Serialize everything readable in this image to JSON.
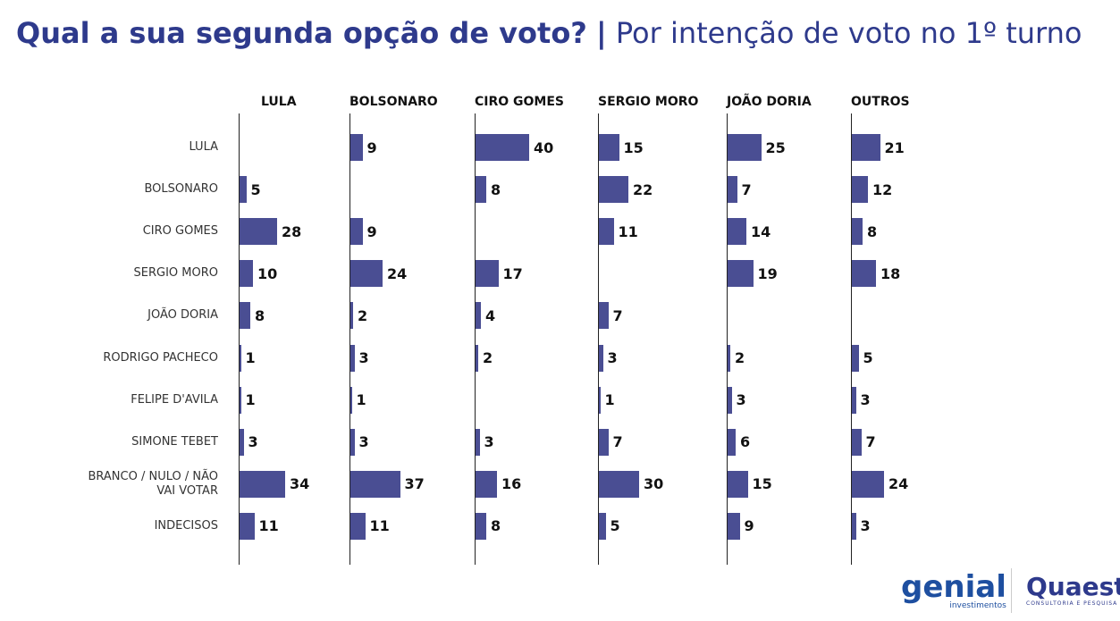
{
  "chart_data": {
    "type": "bar",
    "orientation": "horizontal",
    "title": "Qual a sua segunda opção de voto?",
    "subtitle": "Por intenção de voto no 1º turno",
    "categories": [
      "LULA",
      "BOLSONARO",
      "CIRO GOMES",
      "SERGIO MORO",
      "JOÃO DORIA",
      "RODRIGO PACHECO",
      "FELIPE D'AVILA",
      "SIMONE TEBET",
      "BRANCO / NULO / NÃO VAI VOTAR",
      "INDECISOS"
    ],
    "series": [
      {
        "name": "LULA",
        "color": "#4a4e93",
        "values": [
          null,
          5,
          28,
          10,
          8,
          1,
          1,
          3,
          34,
          11
        ]
      },
      {
        "name": "BOLSONARO",
        "color": "#4a4e93",
        "values": [
          9,
          null,
          9,
          24,
          2,
          3,
          1,
          3,
          37,
          11
        ]
      },
      {
        "name": "CIRO GOMES",
        "color": "#4a4e93",
        "values": [
          40,
          8,
          null,
          17,
          4,
          2,
          null,
          3,
          16,
          8
        ]
      },
      {
        "name": "SERGIO MORO",
        "color": "#4a4e93",
        "values": [
          15,
          22,
          11,
          null,
          7,
          3,
          1,
          7,
          30,
          5
        ]
      },
      {
        "name": "JOÃO DORIA",
        "color": "#4a4e93",
        "values": [
          25,
          7,
          14,
          19,
          null,
          2,
          3,
          6,
          15,
          9
        ]
      },
      {
        "name": "OUTROS",
        "color": "#4a4e93",
        "values": [
          21,
          12,
          8,
          18,
          null,
          5,
          3,
          7,
          24,
          3
        ]
      }
    ]
  },
  "footer": {
    "logo1": "genial",
    "logo1_sub": "investimentos",
    "logo2": "Quaest",
    "logo2_sub": "CONSULTORIA E PESQUISA"
  }
}
